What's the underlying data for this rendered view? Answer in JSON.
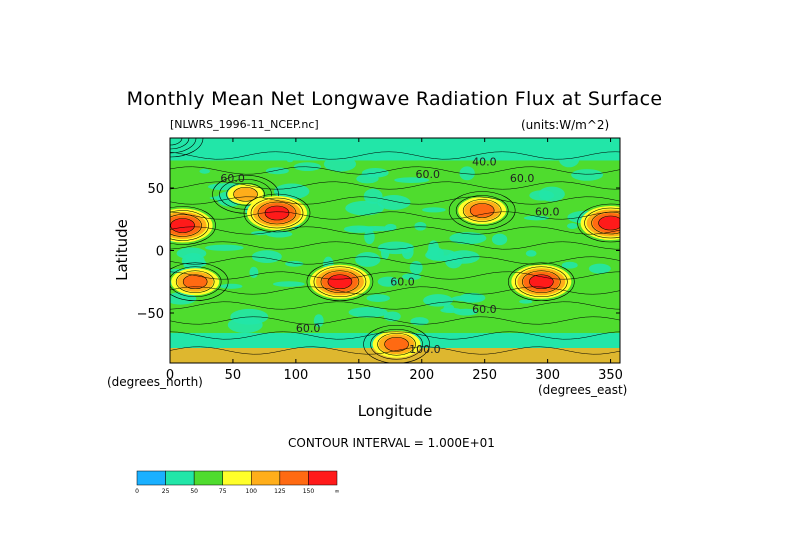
{
  "chart_data": {
    "type": "heatmap",
    "title": "Monthly Mean Net Longwave Radiation Flux at Surface",
    "file_label": "[NLWRS_1996-11_NCEP.nc]",
    "units_label": "(units:W/m^2)",
    "xlabel": "Longitude",
    "ylabel": "Latitude",
    "x_unit_note": "(degrees_east)",
    "y_unit_note": "(degrees_north)",
    "contour_interval_text": "CONTOUR INTERVAL = 1.000E+01",
    "xlim": [
      0,
      357.5
    ],
    "ylim": [
      -90,
      90
    ],
    "x_ticks": [
      0,
      50,
      100,
      150,
      200,
      250,
      300,
      350
    ],
    "y_ticks": [
      50,
      0,
      -50
    ],
    "y_tick_labels": [
      "50",
      "0",
      "−50"
    ],
    "colorbar": {
      "bounds": [
        "0",
        "25",
        "50",
        "75",
        "100",
        "125",
        "150",
        "∞"
      ],
      "colors": [
        "#1ab0ff",
        "#22e6a8",
        "#4fdc2e",
        "#ffff2a",
        "#ffae1a",
        "#ff6a12",
        "#ff1a1a"
      ]
    },
    "contour_labels": [
      "40.0",
      "60.0",
      "60.0",
      "60.0",
      "60.0",
      "60.0",
      "60.0",
      "60.0",
      "100.0"
    ],
    "features": [
      {
        "lon": 0,
        "lat": 90,
        "level": 1
      },
      {
        "lon": 60,
        "lat": 45,
        "level": 3
      },
      {
        "lon": 85,
        "lat": 30,
        "level": 5
      },
      {
        "lon": 10,
        "lat": 20,
        "level": 5
      },
      {
        "lon": 20,
        "lat": -25,
        "level": 4
      },
      {
        "lon": 135,
        "lat": -25,
        "level": 5
      },
      {
        "lon": 248,
        "lat": 32,
        "level": 4
      },
      {
        "lon": 295,
        "lat": -25,
        "level": 5
      },
      {
        "lon": 350,
        "lat": 22,
        "level": 5
      },
      {
        "lon": 180,
        "lat": -75,
        "level": 4
      }
    ]
  }
}
